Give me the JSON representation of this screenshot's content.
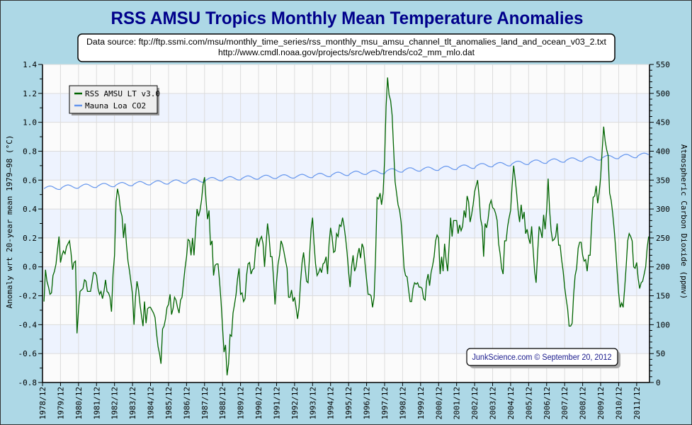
{
  "chart_data": {
    "type": "line",
    "title": "RSS AMSU Tropics Monthly Mean Temperature Anomalies",
    "source_lines": [
      "Data source: ftp://ftp.ssmi.com/msu/monthly_time_series/rss_monthly_msu_amsu_channel_tlt_anomalies_land_and_ocean_v03_2.txt",
      "http://www.cmdl.noaa.gov/projects/src/web/trends/co2_mm_mlo.dat"
    ],
    "credit": "JunkScience.com © September 20, 2012",
    "ylabel": "Anomaly wrt 20-year mean 1979–98 (°C)",
    "y2label": "Atmospheric Carbon Dioxide (ppmv)",
    "ylim": [
      -0.8,
      1.4
    ],
    "y2lim": [
      0,
      550
    ],
    "xlim": [
      1978.917,
      2012.63
    ],
    "grid": true,
    "legend_position": "top-left",
    "y_ticks": [
      "1.4",
      "1.2",
      "1.0",
      "0.8",
      "0.6",
      "0.4",
      "0.2",
      "0.0",
      "-0.2",
      "-0.4",
      "-0.6",
      "-0.8"
    ],
    "y2_ticks": [
      "550",
      "500",
      "450",
      "400",
      "350",
      "300",
      "250",
      "200",
      "150",
      "100",
      "50",
      "0"
    ],
    "x_ticks": [
      "1978/12",
      "1979/12",
      "1980/12",
      "1981/12",
      "1982/12",
      "1983/12",
      "1984/12",
      "1985/12",
      "1986/12",
      "1987/12",
      "1988/12",
      "1989/12",
      "1990/12",
      "1991/12",
      "1992/12",
      "1993/12",
      "1994/12",
      "1995/12",
      "1996/12",
      "1997/12",
      "1998/12",
      "1999/12",
      "2000/12",
      "2001/12",
      "2002/12",
      "2003/12",
      "2004/12",
      "2005/12",
      "2006/12",
      "2007/12",
      "2008/12",
      "2009/12",
      "2010/12",
      "2011/12"
    ],
    "colors": {
      "temp": "#006400",
      "co2": "#6495ed",
      "title": "#00008b",
      "background": "#add8e6",
      "band": "#eef3fe",
      "plot": "#fbfbfb"
    },
    "series": [
      {
        "name": "RSS AMSU LT v3.0",
        "axis": "left",
        "start": "1979-01",
        "frequency": "monthly",
        "values": [
          -0.24,
          -0.02,
          -0.1,
          -0.14,
          -0.19,
          -0.18,
          -0.06,
          -0.03,
          0.02,
          0.12,
          0.21,
          0.03,
          0.08,
          0.11,
          0.09,
          0.14,
          0.16,
          0.18,
          0.1,
          -0.02,
          0.03,
          0.04,
          -0.46,
          -0.3,
          -0.17,
          -0.16,
          -0.15,
          -0.09,
          -0.1,
          -0.17,
          -0.17,
          -0.17,
          -0.11,
          -0.04,
          -0.04,
          -0.06,
          -0.15,
          -0.19,
          -0.17,
          -0.22,
          -0.17,
          -0.09,
          -0.17,
          -0.18,
          -0.21,
          -0.31,
          -0.05,
          0.08,
          0.45,
          0.54,
          0.49,
          0.39,
          0.35,
          0.2,
          0.3,
          0.15,
          0.04,
          -0.03,
          -0.11,
          -0.19,
          -0.4,
          -0.21,
          -0.1,
          -0.16,
          -0.26,
          -0.34,
          -0.41,
          -0.24,
          -0.39,
          -0.29,
          -0.28,
          -0.28,
          -0.3,
          -0.32,
          -0.35,
          -0.46,
          -0.55,
          -0.6,
          -0.67,
          -0.43,
          -0.41,
          -0.36,
          -0.28,
          -0.26,
          -0.19,
          -0.33,
          -0.29,
          -0.21,
          -0.23,
          -0.28,
          -0.32,
          -0.23,
          -0.21,
          -0.11,
          -0.01,
          0.07,
          0.19,
          0.18,
          0.08,
          0.2,
          0.08,
          0.25,
          0.4,
          0.35,
          0.39,
          0.46,
          0.57,
          0.62,
          0.46,
          0.33,
          0.39,
          0.15,
          0.18,
          -0.06,
          0.01,
          0.02,
          0.02,
          -0.1,
          -0.24,
          -0.42,
          -0.59,
          -0.54,
          -0.75,
          -0.67,
          -0.47,
          -0.48,
          -0.32,
          -0.26,
          -0.19,
          -0.08,
          -0.01,
          -0.19,
          -0.18,
          -0.24,
          -0.22,
          -0.06,
          0.02,
          0.03,
          -0.05,
          -0.02,
          -0.01,
          0.12,
          0.2,
          0.14,
          0.19,
          0.21,
          0.16,
          0.0,
          0.15,
          0.3,
          0.21,
          0.07,
          0.07,
          -0.08,
          -0.26,
          -0.1,
          0.02,
          0.08,
          0.18,
          0.15,
          0.1,
          0.04,
          -0.01,
          -0.21,
          -0.21,
          -0.16,
          -0.24,
          -0.21,
          -0.28,
          -0.36,
          -0.28,
          -0.1,
          0.03,
          0.1,
          0.0,
          -0.1,
          -0.11,
          0.08,
          0.26,
          0.34,
          0.16,
          0.02,
          -0.06,
          -0.04,
          -0.01,
          -0.04,
          0.02,
          0.03,
          0.07,
          -0.05,
          0.16,
          0.27,
          0.21,
          0.1,
          0.11,
          0.23,
          0.21,
          0.29,
          0.28,
          0.34,
          0.28,
          0.2,
          0.1,
          -0.03,
          -0.14,
          0.0,
          0.08,
          -0.03,
          0.0,
          0.08,
          0.13,
          0.06,
          0.16,
          0.13,
          0.02,
          -0.09,
          -0.19,
          -0.19,
          -0.2,
          -0.28,
          -0.21,
          0.08,
          0.48,
          0.47,
          0.51,
          0.43,
          0.51,
          0.74,
          1.11,
          1.31,
          1.19,
          1.15,
          1.05,
          0.82,
          0.59,
          0.51,
          0.43,
          0.39,
          0.31,
          0.16,
          -0.01,
          -0.06,
          -0.07,
          -0.16,
          -0.24,
          -0.24,
          -0.15,
          -0.11,
          -0.12,
          -0.11,
          -0.14,
          -0.14,
          -0.15,
          -0.22,
          -0.23,
          -0.1,
          -0.05,
          -0.13,
          -0.04,
          0.01,
          0.07,
          0.18,
          0.22,
          0.2,
          -0.05,
          0.07,
          -0.03,
          0.16,
          0.05,
          -0.03,
          0.15,
          0.34,
          0.21,
          0.32,
          0.32,
          0.32,
          0.23,
          0.29,
          0.25,
          0.28,
          0.39,
          0.34,
          0.49,
          0.45,
          0.31,
          0.36,
          0.43,
          0.52,
          0.56,
          0.6,
          0.49,
          0.33,
          0.28,
          0.07,
          0.3,
          0.27,
          0.33,
          0.43,
          0.46,
          0.41,
          0.4,
          0.37,
          0.32,
          0.16,
          0.09,
          -0.01,
          -0.05,
          0.18,
          0.18,
          0.28,
          0.34,
          0.39,
          0.56,
          0.7,
          0.61,
          0.51,
          0.39,
          0.31,
          0.43,
          0.33,
          0.38,
          0.23,
          0.26,
          0.2,
          0.16,
          0.28,
          0.12,
          -0.03,
          -0.11,
          0.1,
          0.28,
          0.25,
          0.2,
          0.36,
          0.26,
          0.39,
          0.61,
          0.39,
          0.25,
          0.18,
          0.19,
          0.21,
          0.3,
          0.15,
          0.15,
          0.05,
          -0.03,
          -0.14,
          -0.22,
          -0.29,
          -0.41,
          -0.41,
          -0.39,
          -0.19,
          -0.06,
          -0.01,
          0.13,
          0.17,
          0.17,
          0.08,
          0.04,
          0.05,
          -0.03,
          0.08,
          0.08,
          0.3,
          0.48,
          0.49,
          0.56,
          0.44,
          0.51,
          0.62,
          0.8,
          0.97,
          0.87,
          0.81,
          0.77,
          0.51,
          0.46,
          0.37,
          0.26,
          0.13,
          -0.03,
          -0.18,
          -0.28,
          -0.25,
          -0.28,
          -0.15,
          0.0,
          0.18,
          0.23,
          0.21,
          0.18,
          0.0,
          -0.01,
          0.03,
          -0.08,
          -0.15,
          -0.11,
          -0.1,
          -0.05,
          0.0,
          0.13,
          0.21
        ]
      },
      {
        "name": "Mauna Loa CO2",
        "axis": "right",
        "annual_years": [
          1979,
          1980,
          1981,
          1982,
          1983,
          1984,
          1985,
          1986,
          1987,
          1988,
          1989,
          1990,
          1991,
          1992,
          1993,
          1994,
          1995,
          1996,
          1997,
          1998,
          1999,
          2000,
          2001,
          2002,
          2003,
          2004,
          2005,
          2006,
          2007,
          2008,
          2009,
          2010,
          2011,
          2012
        ],
        "annual_means": [
          336.8,
          338.7,
          340.1,
          341.4,
          343.0,
          344.6,
          346.0,
          347.4,
          349.2,
          351.6,
          353.1,
          354.4,
          355.6,
          356.4,
          357.1,
          358.8,
          360.8,
          362.6,
          363.7,
          366.7,
          368.4,
          369.6,
          371.1,
          373.2,
          375.8,
          377.5,
          379.8,
          381.9,
          383.8,
          385.6,
          387.4,
          389.9,
          391.6,
          393.8
        ],
        "seasonal_amplitude": 3.0
      }
    ]
  }
}
